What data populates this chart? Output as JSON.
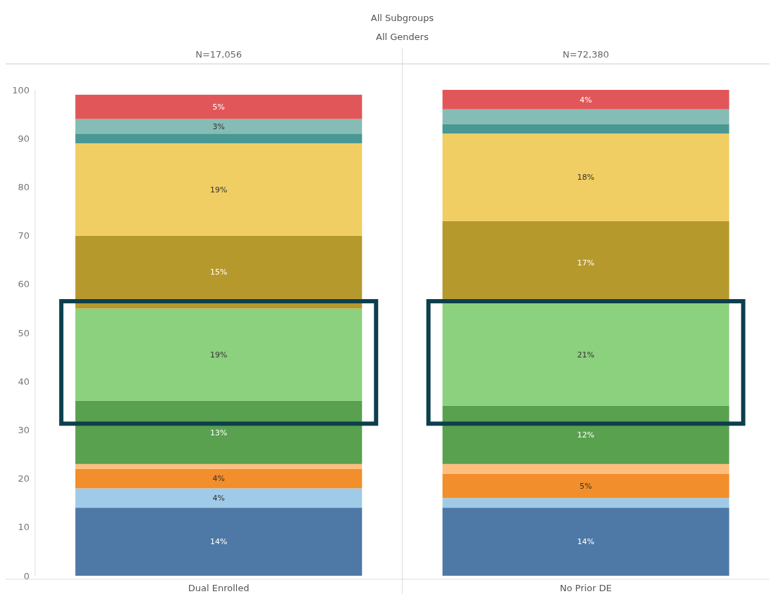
{
  "chart_data": {
    "type": "bar",
    "title": "All Subgroups",
    "subtitle": "All Genders",
    "annotations": [
      "N=17,056",
      "N=72,380"
    ],
    "categories": [
      "Dual Enrolled",
      "No Prior DE"
    ],
    "stacked": true,
    "ylim": [
      0,
      100
    ],
    "yticks": [
      0,
      10,
      20,
      30,
      40,
      50,
      60,
      70,
      80,
      90,
      100
    ],
    "grid": false,
    "series": [
      {
        "color": "#4e79a7",
        "values": [
          14,
          14
        ],
        "value_labels": [
          "14%",
          "14%"
        ]
      },
      {
        "color": "#a0cbe8",
        "values": [
          4,
          2
        ],
        "value_labels": [
          "4%",
          null
        ]
      },
      {
        "color": "#f28e2b",
        "values": [
          4,
          5
        ],
        "value_labels": [
          "4%",
          "5%"
        ]
      },
      {
        "color": "#ffbe7d",
        "values": [
          1,
          2
        ],
        "value_labels": [
          null,
          null
        ]
      },
      {
        "color": "#59a14f",
        "values": [
          13,
          12
        ],
        "value_labels": [
          "13%",
          "12%"
        ]
      },
      {
        "color": "#8cd17d",
        "values": [
          19,
          21
        ],
        "value_labels": [
          "19%",
          "21%"
        ]
      },
      {
        "color": "#b6992d",
        "values": [
          15,
          17
        ],
        "value_labels": [
          "15%",
          "17%"
        ]
      },
      {
        "color": "#f1ce63",
        "values": [
          19,
          18
        ],
        "value_labels": [
          "19%",
          "18%"
        ]
      },
      {
        "color": "#499894",
        "values": [
          2,
          2
        ],
        "value_labels": [
          null,
          null
        ]
      },
      {
        "color": "#86bcb6",
        "values": [
          3,
          3
        ],
        "value_labels": [
          "3%",
          null
        ]
      },
      {
        "color": "#e15759",
        "values": [
          5,
          4
        ],
        "value_labels": [
          "5%",
          "4%"
        ]
      }
    ]
  }
}
